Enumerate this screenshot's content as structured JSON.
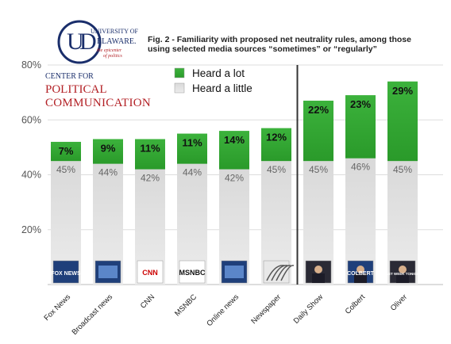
{
  "logo": {
    "org_line1": "UNIVERSITY OF",
    "org_line2": "ELAWARE.",
    "tagline": "the epicenter of politics",
    "center_prefix": "CENTER FOR",
    "center_name1": "POLITICAL",
    "center_name2": "COMMUNICATION"
  },
  "title": "Fig. 2 - Familiarity with proposed net neutrality rules, among those using selected media sources “sometimes” or “regularly”",
  "colors": {
    "heard_a_lot": "#2a9a2a",
    "heard_a_little": "#cfcfcf",
    "divider": "#333333",
    "grid": "#dddddd"
  },
  "chart_data": {
    "type": "bar",
    "stacked": true,
    "categories": [
      "Fox News",
      "Broadcast news",
      "CNN",
      "MSNBC",
      "Online news",
      "Newspaper",
      "Daily Show",
      "Colbert",
      "Oliver"
    ],
    "series": [
      {
        "name": "Heard a little",
        "values": [
          45,
          44,
          42,
          44,
          42,
          45,
          45,
          46,
          45
        ]
      },
      {
        "name": "Heard a lot",
        "values": [
          7,
          9,
          11,
          11,
          14,
          12,
          22,
          23,
          29
        ]
      }
    ],
    "value_labels": {
      "Heard a little": [
        "45%",
        "44%",
        "42%",
        "44%",
        "42%",
        "45%",
        "45%",
        "46%",
        "45%"
      ],
      "Heard a lot": [
        "7%",
        "9%",
        "11%",
        "11%",
        "14%",
        "12%",
        "22%",
        "23%",
        "29%"
      ]
    },
    "yticks": [
      "20%",
      "40%",
      "60%",
      "80%"
    ],
    "ylim": [
      0,
      80
    ],
    "grid": true,
    "legend_position": "top-left",
    "divider_after_category": "Newspaper",
    "logos": [
      "FOX NEWS",
      "",
      "CNN",
      "MSNBC",
      "",
      "",
      "",
      "COLBERT",
      "LAST WEEK TONIGHT"
    ]
  }
}
